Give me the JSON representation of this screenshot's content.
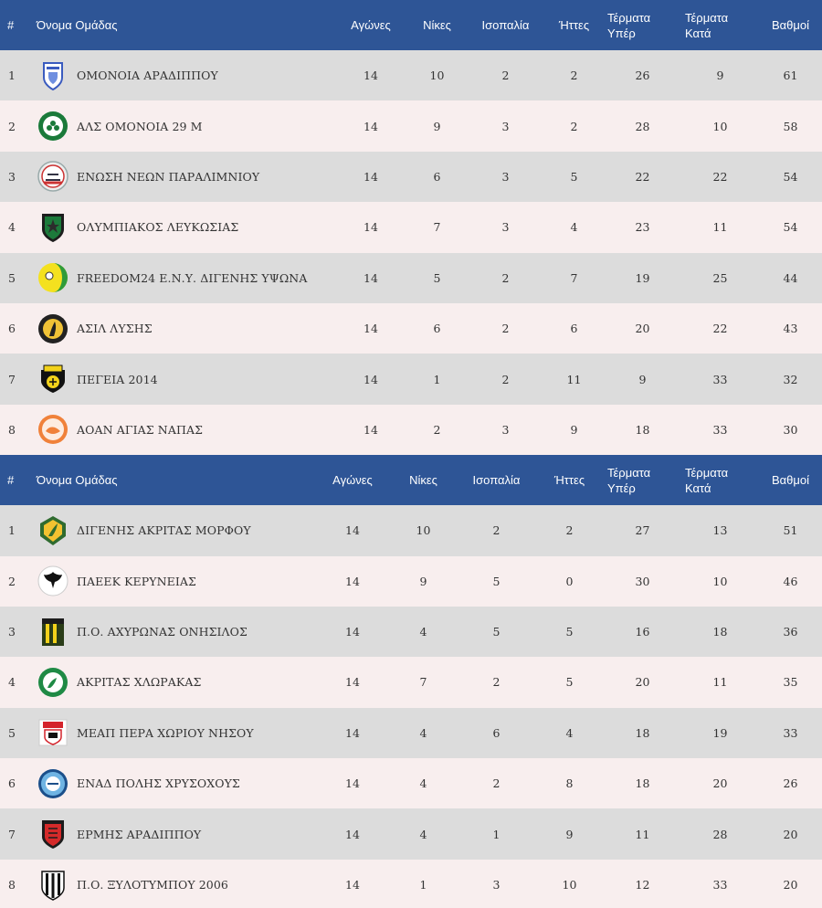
{
  "headers": {
    "rank": "#",
    "team": "Όνομα Ομάδας",
    "played": "Αγώνες",
    "wins": "Νίκες",
    "draws": "Ισοπαλία",
    "losses": "Ήττες",
    "goals_for_line1": "Τέρματα",
    "goals_for_line2": "Υπέρ",
    "goals_against_line1": "Τέρματα",
    "goals_against_line2": "Κατά",
    "points": "Βαθμοί"
  },
  "colors": {
    "header_bg": "#2e5596",
    "row_odd": "#dcdcdc",
    "row_even": "#f8eeee"
  },
  "tables": [
    {
      "rows": [
        {
          "rank": "1",
          "team": "ΟΜΟΝΟΙΑ ΑΡΑΔΙΠΠΟΥ",
          "crest": "omonoia-aradippou-crest-icon",
          "played": "14",
          "wins": "10",
          "draws": "2",
          "losses": "2",
          "gf": "26",
          "ga": "9",
          "pts": "61"
        },
        {
          "rank": "2",
          "team": "ΑΛΣ ΟΜΟΝΟΙΑ 29 Μ",
          "crest": "als-omonoia-crest-icon",
          "played": "14",
          "wins": "9",
          "draws": "3",
          "losses": "2",
          "gf": "28",
          "ga": "10",
          "pts": "58"
        },
        {
          "rank": "3",
          "team": "ΕΝΩΣΗ ΝΕΩΝ ΠΑΡΑΛΙΜΝΙΟΥ",
          "crest": "enp-crest-icon",
          "played": "14",
          "wins": "6",
          "draws": "3",
          "losses": "5",
          "gf": "22",
          "ga": "22",
          "pts": "54"
        },
        {
          "rank": "4",
          "team": "ΟΛΥΜΠΙΑΚΟΣ ΛΕΥΚΩΣΙΑΣ",
          "crest": "olympiakos-crest-icon",
          "played": "14",
          "wins": "7",
          "draws": "3",
          "losses": "4",
          "gf": "23",
          "ga": "11",
          "pts": "54"
        },
        {
          "rank": "5",
          "team": "FREEDOM24 Ε.Ν.Υ. ΔΙΓΕΝΗΣ ΥΨΩΝΑ",
          "crest": "digenis-ypsona-crest-icon",
          "played": "14",
          "wins": "5",
          "draws": "2",
          "losses": "7",
          "gf": "19",
          "ga": "25",
          "pts": "44"
        },
        {
          "rank": "6",
          "team": "ΑΣΙΛ ΛΥΣΗΣ",
          "crest": "asil-lysis-crest-icon",
          "played": "14",
          "wins": "6",
          "draws": "2",
          "losses": "6",
          "gf": "20",
          "ga": "22",
          "pts": "43"
        },
        {
          "rank": "7",
          "team": "ΠΕΓΕΙΑ 2014",
          "crest": "pegeia-crest-icon",
          "played": "14",
          "wins": "1",
          "draws": "2",
          "losses": "11",
          "gf": "9",
          "ga": "33",
          "pts": "32"
        },
        {
          "rank": "8",
          "team": "ΑΟΑΝ ΑΓΙΑΣ ΝΑΠΑΣ",
          "crest": "aoan-crest-icon",
          "played": "14",
          "wins": "2",
          "draws": "3",
          "losses": "9",
          "gf": "18",
          "ga": "33",
          "pts": "30"
        }
      ]
    },
    {
      "rows": [
        {
          "rank": "1",
          "team": "ΔΙΓΕΝΗΣ ΑΚΡΙΤΑΣ ΜΟΡΦΟΥ",
          "crest": "digenis-morfou-crest-icon",
          "played": "14",
          "wins": "10",
          "draws": "2",
          "losses": "2",
          "gf": "27",
          "ga": "13",
          "pts": "51"
        },
        {
          "rank": "2",
          "team": "ΠΑΕΕΚ ΚΕΡΥΝΕΙΑΣ",
          "crest": "paeek-crest-icon",
          "played": "14",
          "wins": "9",
          "draws": "5",
          "losses": "0",
          "gf": "30",
          "ga": "10",
          "pts": "46"
        },
        {
          "rank": "3",
          "team": "Π.Ο. ΑΧΥΡΩΝΑΣ ΟΝΗΣΙΛΟΣ",
          "crest": "achyronas-crest-icon",
          "played": "14",
          "wins": "4",
          "draws": "5",
          "losses": "5",
          "gf": "16",
          "ga": "18",
          "pts": "36"
        },
        {
          "rank": "4",
          "team": "ΑΚΡΙΤΑΣ ΧΛΩΡΑΚΑΣ",
          "crest": "akritas-crest-icon",
          "played": "14",
          "wins": "7",
          "draws": "2",
          "losses": "5",
          "gf": "20",
          "ga": "11",
          "pts": "35"
        },
        {
          "rank": "5",
          "team": "ΜΕΑΠ ΠΕΡΑ ΧΩΡΙΟΥ ΝΗΣΟΥ",
          "crest": "meap-crest-icon",
          "played": "14",
          "wins": "4",
          "draws": "6",
          "losses": "4",
          "gf": "18",
          "ga": "19",
          "pts": "33"
        },
        {
          "rank": "6",
          "team": "ΕΝΑΔ ΠΟΛΗΣ ΧΡΥΣΟΧΟΥΣ",
          "crest": "enad-crest-icon",
          "played": "14",
          "wins": "4",
          "draws": "2",
          "losses": "8",
          "gf": "18",
          "ga": "20",
          "pts": "26"
        },
        {
          "rank": "7",
          "team": "ΕΡΜΗΣ ΑΡΑΔΙΠΠΟΥ",
          "crest": "ermis-crest-icon",
          "played": "14",
          "wins": "4",
          "draws": "1",
          "losses": "9",
          "gf": "11",
          "ga": "28",
          "pts": "20"
        },
        {
          "rank": "8",
          "team": "Π.Ο. ΞΥΛΟΤΥΜΠΟΥ 2006",
          "crest": "xylotymbou-crest-icon",
          "played": "14",
          "wins": "1",
          "draws": "3",
          "losses": "10",
          "gf": "12",
          "ga": "33",
          "pts": "20"
        }
      ]
    }
  ]
}
